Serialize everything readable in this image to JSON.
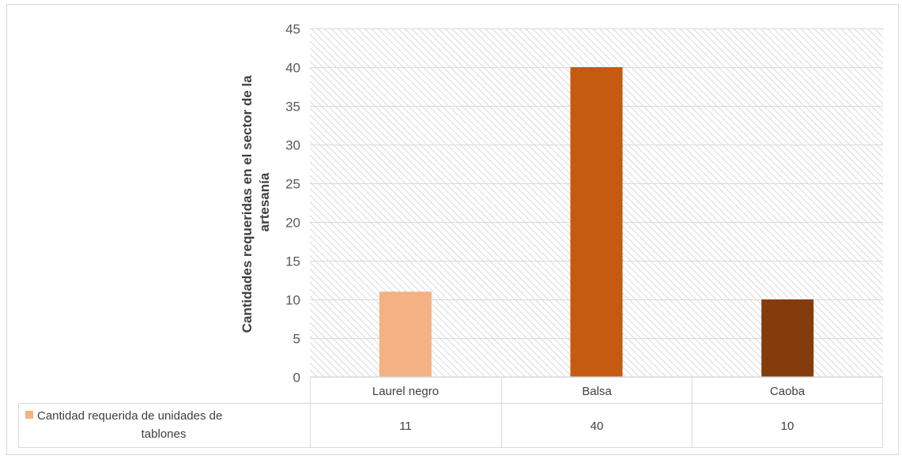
{
  "chart_data": {
    "type": "bar",
    "ylabel_lines": [
      "Cantidades requeridas en el sector de la",
      "artesanía"
    ],
    "categories": [
      "Laurel negro",
      "Balsa",
      "Caoba"
    ],
    "series": [
      {
        "name_lines": [
          "Cantidad requerida de unidades de",
          "tablones"
        ],
        "values": [
          11,
          40,
          10
        ],
        "value_labels": [
          "11",
          "40",
          "10"
        ]
      }
    ],
    "bar_colors": [
      "#f4b183",
      "#c55a11",
      "#843c0c"
    ],
    "legend_color": "#f4b183",
    "yticks": [
      "0",
      "5",
      "10",
      "15",
      "20",
      "25",
      "30",
      "35",
      "40",
      "45"
    ],
    "ylim": [
      0,
      45
    ],
    "grid": true,
    "data_table": true,
    "plot_fill": "hatched-gray"
  }
}
